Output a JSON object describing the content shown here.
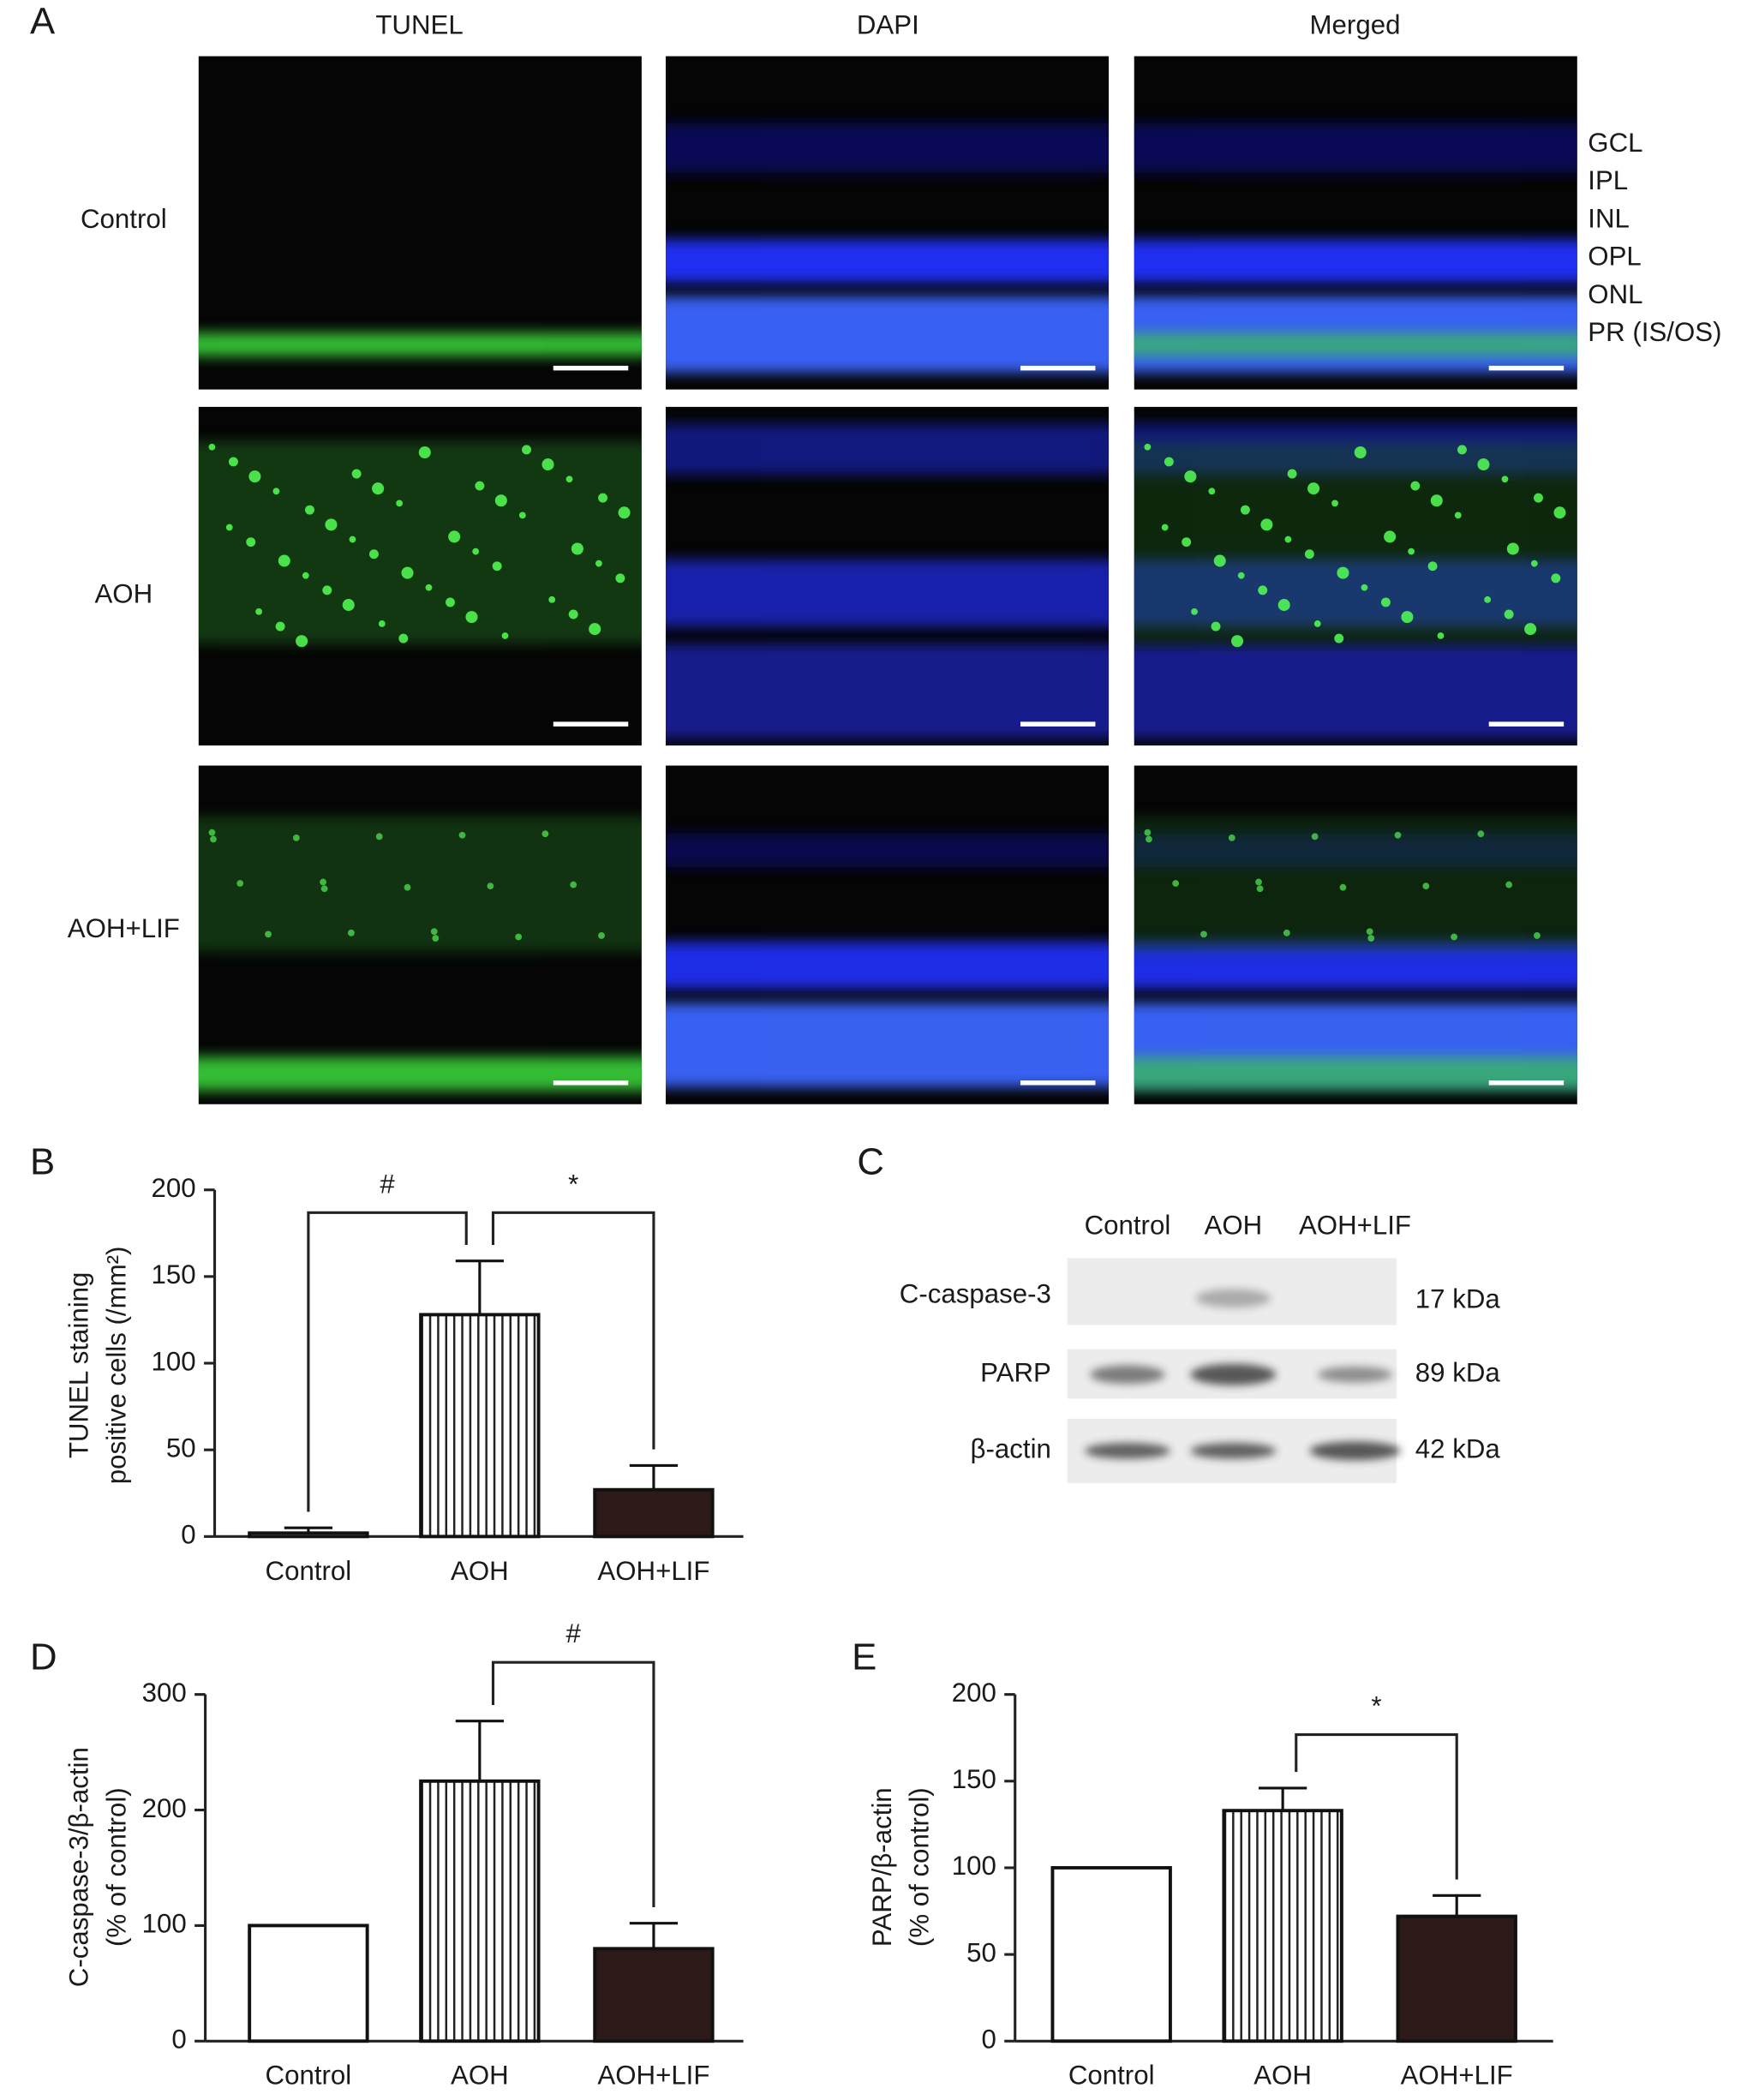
{
  "figure": {
    "panel_labels": [
      "A",
      "B",
      "C",
      "D",
      "E"
    ],
    "micrographs": {
      "columns": [
        "TUNEL",
        "DAPI",
        "Merged"
      ],
      "column_colors": [
        "#22b022",
        "#1a1aff",
        "#1a1a1a"
      ],
      "rows": [
        "Control",
        "AOH",
        "AOH+LIF"
      ],
      "layers": [
        "GCL",
        "IPL",
        "INL",
        "OPL",
        "ONL",
        "PR (IS/OS)"
      ],
      "layer_color": "#e8201c"
    },
    "blot": {
      "lanes": [
        "Control",
        "AOH",
        "AOH+LIF"
      ],
      "proteins": [
        "C-caspase-3",
        "PARP",
        "β-actin"
      ],
      "sizes": [
        "17 kDa",
        "89 kDa",
        "42 kDa"
      ]
    }
  },
  "chart_data": [
    {
      "type": "bar",
      "ylabel": [
        "TUNEL staining",
        "positive cells (/mm²)"
      ],
      "categories": [
        "Control",
        "AOH",
        "AOH+LIF"
      ],
      "values": [
        2,
        128,
        27
      ],
      "errors": [
        3,
        31,
        14
      ],
      "colors": [
        "#ffffff",
        "#ffffff",
        "#2b1a18"
      ],
      "hatch": [
        false,
        true,
        false
      ],
      "ylim": [
        0,
        200
      ],
      "yticks": [
        0,
        50,
        100,
        150,
        200
      ],
      "annotations": [
        "#",
        "*"
      ]
    },
    {
      "type": "bar",
      "ylabel": [
        "C-caspase-3/β-actin",
        "(% of control)"
      ],
      "categories": [
        "Control",
        "AOH",
        "AOH+LIF"
      ],
      "values": [
        100,
        225,
        80
      ],
      "errors": [
        null,
        52,
        22
      ],
      "colors": [
        "#ffffff",
        "#ffffff",
        "#2b1a18"
      ],
      "hatch": [
        false,
        true,
        false
      ],
      "ylim": [
        0,
        300
      ],
      "yticks": [
        0,
        100,
        200,
        300
      ],
      "annotations": [
        "#"
      ]
    },
    {
      "type": "bar",
      "ylabel": [
        "PARP/β-actin",
        "(% of control)"
      ],
      "categories": [
        "Control",
        "AOH",
        "AOH+LIF"
      ],
      "values": [
        100,
        133,
        72
      ],
      "errors": [
        null,
        13,
        12
      ],
      "colors": [
        "#ffffff",
        "#ffffff",
        "#2b1a18"
      ],
      "hatch": [
        false,
        true,
        false
      ],
      "ylim": [
        0,
        200
      ],
      "yticks": [
        0,
        50,
        100,
        150,
        200
      ],
      "annotations": [
        "*"
      ]
    }
  ]
}
